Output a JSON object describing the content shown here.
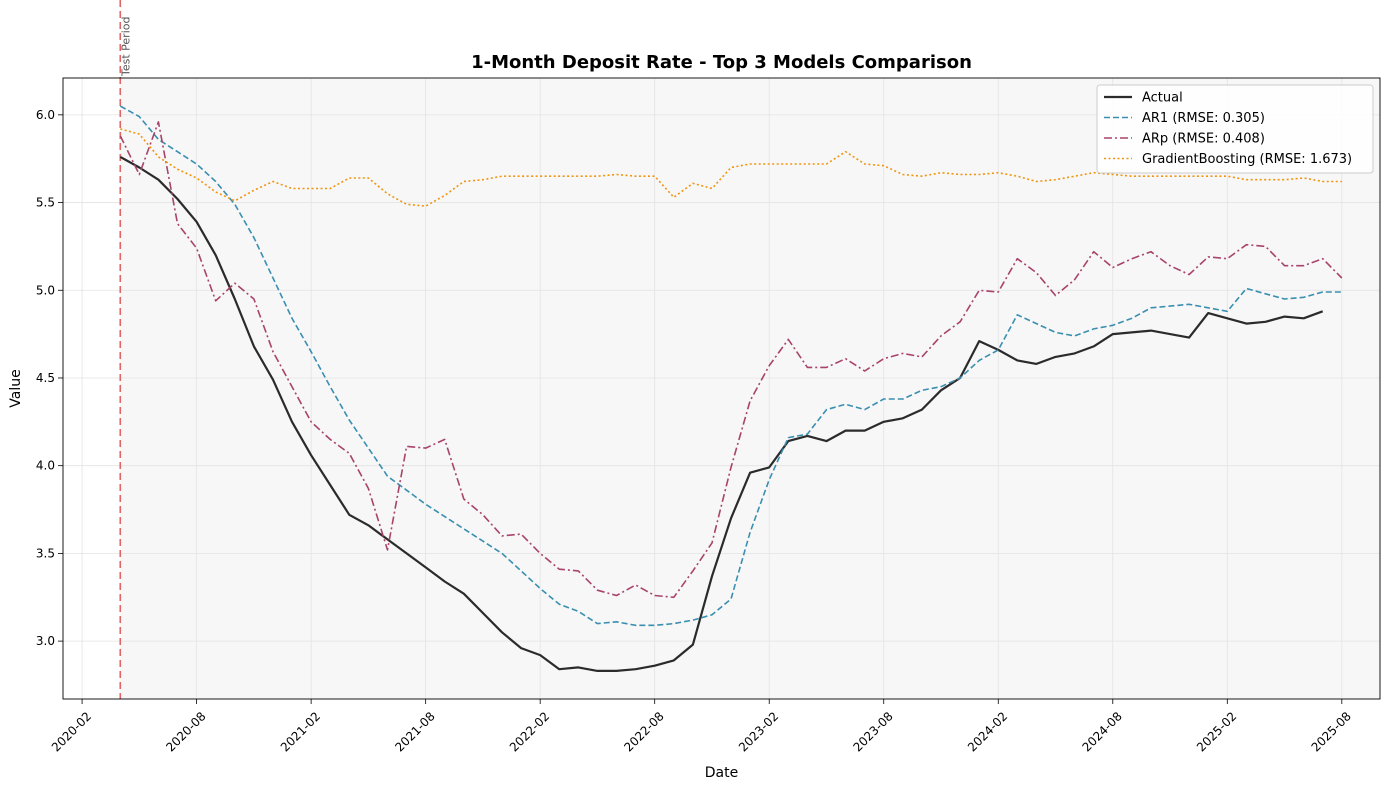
{
  "chart_data": {
    "type": "line",
    "title": "1-Month Deposit Rate - Top 3 Models Comparison",
    "xlabel": "Date",
    "ylabel": "Value",
    "xlim": [
      "2020-01",
      "2025-10"
    ],
    "ylim": [
      2.67,
      6.21
    ],
    "grid": true,
    "legend_position": "top-right",
    "x_ticks": [
      "2020-02",
      "2020-08",
      "2021-02",
      "2021-08",
      "2022-02",
      "2022-08",
      "2023-02",
      "2023-08",
      "2024-02",
      "2024-08",
      "2025-02",
      "2025-08"
    ],
    "y_ticks": [
      "3.0",
      "3.5",
      "4.0",
      "4.5",
      "5.0",
      "5.5",
      "6.0"
    ],
    "annotation": {
      "label": "Test Period",
      "x": "2020-04",
      "color": "#e06666"
    },
    "series": [
      {
        "name": "Actual",
        "color": "#2b2b2b",
        "style": "solid",
        "x": [
          "2020-04",
          "2020-05",
          "2020-06",
          "2020-07",
          "2020-08",
          "2020-09",
          "2020-10",
          "2020-11",
          "2020-12",
          "2021-01",
          "2021-02",
          "2021-03",
          "2021-04",
          "2021-05",
          "2021-06",
          "2021-07",
          "2021-08",
          "2021-09",
          "2021-10",
          "2021-11",
          "2021-12",
          "2022-01",
          "2022-02",
          "2022-03",
          "2022-04",
          "2022-05",
          "2022-06",
          "2022-07",
          "2022-08",
          "2022-09",
          "2022-10",
          "2022-11",
          "2022-12",
          "2023-01",
          "2023-02",
          "2023-03",
          "2023-04",
          "2023-05",
          "2023-06",
          "2023-07",
          "2023-08",
          "2023-09",
          "2023-10",
          "2023-11",
          "2023-12",
          "2024-01",
          "2024-02",
          "2024-03",
          "2024-04",
          "2024-05",
          "2024-06",
          "2024-07",
          "2024-08",
          "2024-09",
          "2024-10",
          "2024-11",
          "2024-12",
          "2025-01",
          "2025-02",
          "2025-03",
          "2025-04",
          "2025-05",
          "2025-06",
          "2025-07"
        ],
        "values": [
          5.76,
          5.7,
          5.63,
          5.52,
          5.39,
          5.2,
          4.95,
          4.68,
          4.49,
          4.25,
          4.06,
          3.89,
          3.72,
          3.66,
          3.58,
          3.5,
          3.42,
          3.34,
          3.27,
          3.16,
          3.05,
          2.96,
          2.92,
          2.84,
          2.85,
          2.83,
          2.83,
          2.84,
          2.86,
          2.89,
          2.98,
          3.37,
          3.7,
          3.96,
          3.99,
          4.14,
          4.17,
          4.14,
          4.2,
          4.2,
          4.25,
          4.27,
          4.32,
          4.43,
          4.5,
          4.71,
          4.66,
          4.6,
          4.58,
          4.62,
          4.64,
          4.68,
          4.75,
          4.76,
          4.77,
          4.75,
          4.73,
          4.87,
          4.84,
          4.81,
          4.82,
          4.85,
          4.84,
          4.88
        ]
      },
      {
        "name": "AR1 (RMSE: 0.305)",
        "color": "#3a8fb0",
        "style": "dashed",
        "x": [
          "2020-04",
          "2020-05",
          "2020-06",
          "2020-07",
          "2020-08",
          "2020-09",
          "2020-10",
          "2020-11",
          "2020-12",
          "2021-01",
          "2021-02",
          "2021-03",
          "2021-04",
          "2021-05",
          "2021-06",
          "2021-07",
          "2021-08",
          "2021-09",
          "2021-10",
          "2021-11",
          "2021-12",
          "2022-01",
          "2022-02",
          "2022-03",
          "2022-04",
          "2022-05",
          "2022-06",
          "2022-07",
          "2022-08",
          "2022-09",
          "2022-10",
          "2022-11",
          "2022-12",
          "2023-01",
          "2023-02",
          "2023-03",
          "2023-04",
          "2023-05",
          "2023-06",
          "2023-07",
          "2023-08",
          "2023-09",
          "2023-10",
          "2023-11",
          "2023-12",
          "2024-01",
          "2024-02",
          "2024-03",
          "2024-04",
          "2024-05",
          "2024-06",
          "2024-07",
          "2024-08",
          "2024-09",
          "2024-10",
          "2024-11",
          "2024-12",
          "2025-01",
          "2025-02",
          "2025-03",
          "2025-04",
          "2025-05",
          "2025-06",
          "2025-07",
          "2025-08"
        ],
        "values": [
          6.05,
          5.99,
          5.86,
          5.79,
          5.72,
          5.62,
          5.49,
          5.3,
          5.07,
          4.84,
          4.65,
          4.45,
          4.26,
          4.1,
          3.94,
          3.86,
          3.78,
          3.71,
          3.64,
          3.57,
          3.5,
          3.4,
          3.3,
          3.21,
          3.17,
          3.1,
          3.11,
          3.09,
          3.09,
          3.1,
          3.12,
          3.15,
          3.24,
          3.62,
          3.92,
          4.16,
          4.18,
          4.32,
          4.35,
          4.32,
          4.38,
          4.38,
          4.43,
          4.45,
          4.5,
          4.6,
          4.66,
          4.86,
          4.81,
          4.76,
          4.74,
          4.78,
          4.8,
          4.84,
          4.9,
          4.91,
          4.92,
          4.9,
          4.88,
          5.01,
          4.98,
          4.95,
          4.96,
          4.99,
          4.99
        ]
      },
      {
        "name": "ARp (RMSE: 0.408)",
        "color": "#a8436b",
        "style": "dashdot",
        "x": [
          "2020-04",
          "2020-05",
          "2020-06",
          "2020-07",
          "2020-08",
          "2020-09",
          "2020-10",
          "2020-11",
          "2020-12",
          "2021-01",
          "2021-02",
          "2021-03",
          "2021-04",
          "2021-05",
          "2021-06",
          "2021-07",
          "2021-08",
          "2021-09",
          "2021-10",
          "2021-11",
          "2021-12",
          "2022-01",
          "2022-02",
          "2022-03",
          "2022-04",
          "2022-05",
          "2022-06",
          "2022-07",
          "2022-08",
          "2022-09",
          "2022-10",
          "2022-11",
          "2022-12",
          "2023-01",
          "2023-02",
          "2023-03",
          "2023-04",
          "2023-05",
          "2023-06",
          "2023-07",
          "2023-08",
          "2023-09",
          "2023-10",
          "2023-11",
          "2023-12",
          "2024-01",
          "2024-02",
          "2024-03",
          "2024-04",
          "2024-05",
          "2024-06",
          "2024-07",
          "2024-08",
          "2024-09",
          "2024-10",
          "2024-11",
          "2024-12",
          "2025-01",
          "2025-02",
          "2025-03",
          "2025-04",
          "2025-05",
          "2025-06",
          "2025-07",
          "2025-08"
        ],
        "values": [
          5.88,
          5.66,
          5.96,
          5.38,
          5.24,
          4.94,
          5.04,
          4.95,
          4.65,
          4.45,
          4.25,
          4.15,
          4.07,
          3.87,
          3.52,
          4.11,
          4.1,
          4.15,
          3.81,
          3.72,
          3.6,
          3.61,
          3.5,
          3.41,
          3.4,
          3.29,
          3.26,
          3.32,
          3.26,
          3.25,
          3.4,
          3.56,
          3.99,
          4.37,
          4.57,
          4.72,
          4.56,
          4.56,
          4.61,
          4.54,
          4.61,
          4.64,
          4.62,
          4.74,
          4.82,
          5.0,
          4.99,
          5.18,
          5.1,
          4.97,
          5.06,
          5.22,
          5.13,
          5.18,
          5.22,
          5.14,
          5.09,
          5.19,
          5.18,
          5.26,
          5.25,
          5.14,
          5.14,
          5.18,
          5.07
        ]
      },
      {
        "name": "GradientBoosting (RMSE: 1.673)",
        "color": "#f0940e",
        "style": "dotted",
        "x": [
          "2020-04",
          "2020-05",
          "2020-06",
          "2020-07",
          "2020-08",
          "2020-09",
          "2020-10",
          "2020-11",
          "2020-12",
          "2021-01",
          "2021-02",
          "2021-03",
          "2021-04",
          "2021-05",
          "2021-06",
          "2021-07",
          "2021-08",
          "2021-09",
          "2021-10",
          "2021-11",
          "2021-12",
          "2022-01",
          "2022-02",
          "2022-03",
          "2022-04",
          "2022-05",
          "2022-06",
          "2022-07",
          "2022-08",
          "2022-09",
          "2022-10",
          "2022-11",
          "2022-12",
          "2023-01",
          "2023-02",
          "2023-03",
          "2023-04",
          "2023-05",
          "2023-06",
          "2023-07",
          "2023-08",
          "2023-09",
          "2023-10",
          "2023-11",
          "2023-12",
          "2024-01",
          "2024-02",
          "2024-03",
          "2024-04",
          "2024-05",
          "2024-06",
          "2024-07",
          "2024-08",
          "2024-09",
          "2024-10",
          "2024-11",
          "2024-12",
          "2025-01",
          "2025-02",
          "2025-03",
          "2025-04",
          "2025-05",
          "2025-06",
          "2025-07",
          "2025-08"
        ],
        "values": [
          5.92,
          5.89,
          5.76,
          5.69,
          5.64,
          5.56,
          5.51,
          5.57,
          5.62,
          5.58,
          5.58,
          5.58,
          5.64,
          5.64,
          5.55,
          5.49,
          5.48,
          5.54,
          5.62,
          5.63,
          5.65,
          5.65,
          5.65,
          5.65,
          5.65,
          5.65,
          5.66,
          5.65,
          5.65,
          5.53,
          5.61,
          5.58,
          5.7,
          5.72,
          5.72,
          5.72,
          5.72,
          5.72,
          5.79,
          5.72,
          5.71,
          5.66,
          5.65,
          5.67,
          5.66,
          5.66,
          5.67,
          5.65,
          5.62,
          5.63,
          5.65,
          5.67,
          5.66,
          5.65,
          5.65,
          5.65,
          5.65,
          5.65,
          5.65,
          5.63,
          5.63,
          5.63,
          5.64,
          5.62,
          5.62
        ]
      }
    ]
  }
}
